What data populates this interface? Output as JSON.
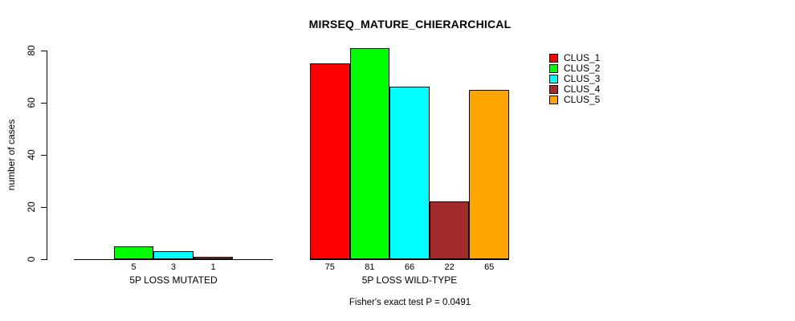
{
  "title": "MIRSEQ_MATURE_CHIERARCHICAL",
  "chart_data": {
    "type": "bar",
    "title": "MIRSEQ_MATURE_CHIERARCHICAL",
    "xlabel": "",
    "ylabel": "number of cases",
    "ylim": [
      0,
      80
    ],
    "yticks": [
      0,
      20,
      40,
      60,
      80
    ],
    "grid": false,
    "legend_position": "top-right",
    "categories": [
      "5P LOSS MUTATED",
      "5P LOSS WILD-TYPE"
    ],
    "series": [
      {
        "name": "CLUS_1",
        "color": "#FF0000",
        "values": [
          0,
          75
        ]
      },
      {
        "name": "CLUS_2",
        "color": "#00FF00",
        "values": [
          5,
          81
        ]
      },
      {
        "name": "CLUS_3",
        "color": "#00FFFF",
        "values": [
          3,
          66
        ]
      },
      {
        "name": "CLUS_4",
        "color": "#A52A2A",
        "values": [
          1,
          22
        ]
      },
      {
        "name": "CLUS_5",
        "color": "#FFA500",
        "values": [
          0,
          65
        ]
      }
    ],
    "bar_labels": [
      [
        "",
        "5",
        "3",
        "1",
        ""
      ],
      [
        "75",
        "81",
        "66",
        "22",
        "65"
      ]
    ],
    "annotation": "Fisher's exact test P = 0.0491"
  }
}
